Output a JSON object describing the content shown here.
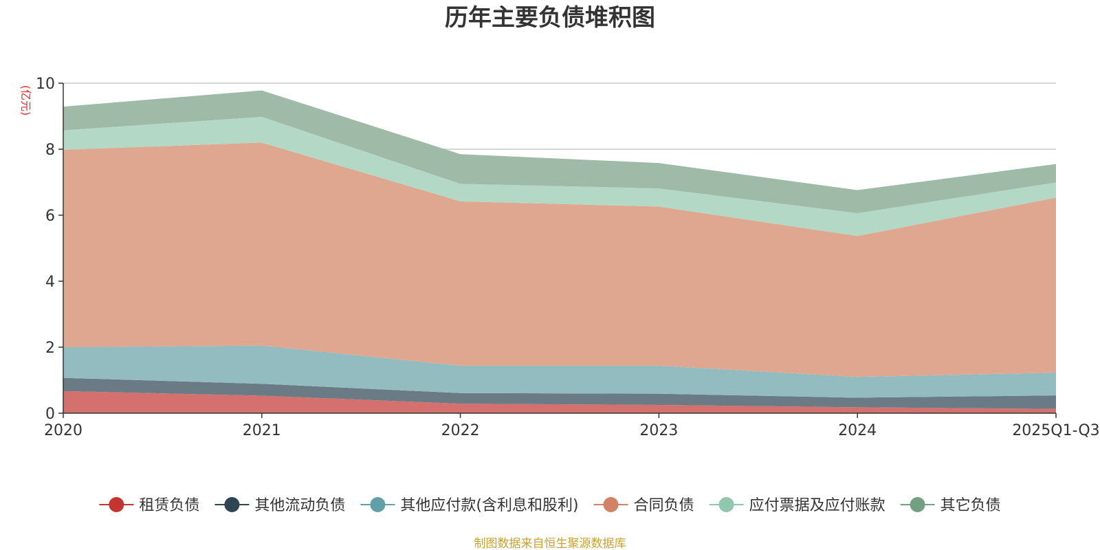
{
  "chart_data": {
    "type": "area",
    "stacked": true,
    "title": "历年主要负债堆积图",
    "ylabel": "(亿元)",
    "xlabel": "",
    "ylim": [
      0,
      10
    ],
    "yticks": [
      "0",
      "2",
      "4",
      "6",
      "8",
      "10"
    ],
    "categories": [
      "2020",
      "2021",
      "2022",
      "2023",
      "2024",
      "2025Q1-Q3"
    ],
    "grid": true,
    "legend_position": "bottom",
    "series": [
      {
        "name": "租赁负债",
        "color": "#c23531",
        "fill": "#d4706e",
        "values": [
          0.67,
          0.53,
          0.29,
          0.25,
          0.18,
          0.13
        ]
      },
      {
        "name": "其他流动负债",
        "color": "#2f4554",
        "fill": "#6b7b86",
        "values": [
          0.4,
          0.36,
          0.32,
          0.34,
          0.29,
          0.41
        ]
      },
      {
        "name": "其他应付款(含利息和股利)",
        "color": "#61a0a8",
        "fill": "#93bcc1",
        "values": [
          0.93,
          1.16,
          0.83,
          0.85,
          0.63,
          0.69
        ]
      },
      {
        "name": "合同负债",
        "color": "#d48265",
        "fill": "#dfa790",
        "values": [
          5.98,
          6.15,
          4.98,
          4.82,
          4.27,
          5.3
        ]
      },
      {
        "name": "应付票据及应付账款",
        "color": "#91c7ae",
        "fill": "#b3d8c6",
        "values": [
          0.59,
          0.78,
          0.53,
          0.55,
          0.69,
          0.46
        ]
      },
      {
        "name": "其它负债",
        "color": "#749f83",
        "fill": "#9fbba8",
        "values": [
          0.72,
          0.8,
          0.9,
          0.77,
          0.7,
          0.56
        ]
      }
    ],
    "source_note": "制图数据来自恒生聚源数据库"
  }
}
